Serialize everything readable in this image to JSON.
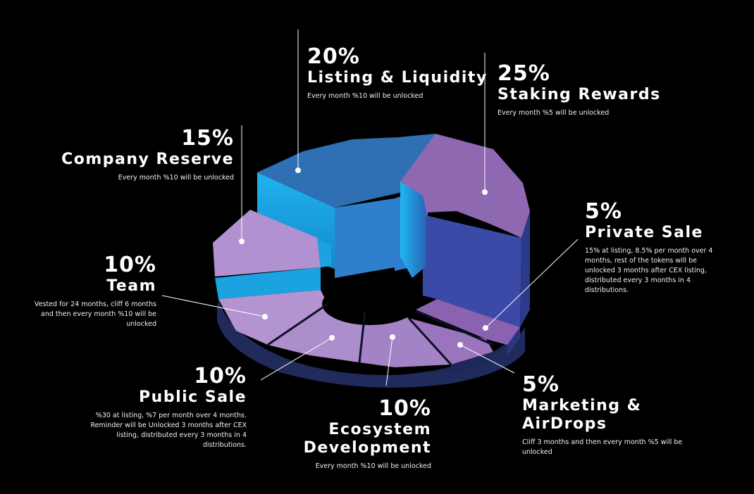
{
  "chart_data": {
    "type": "pie",
    "title": "",
    "slices": [
      {
        "label": "Listing & Liquidity",
        "percent_text": "20%",
        "value": 20,
        "description": "Every month %10 will be unlocked",
        "color": "#2f6fb4"
      },
      {
        "label": "Staking Rewards",
        "percent_text": "25%",
        "value": 25,
        "description": "Every month %5 will be unlocked",
        "color": "#8f68b2"
      },
      {
        "label": "Private Sale",
        "percent_text": "5%",
        "value": 5,
        "description": "15% at listing, 8.5% per month  over 4 months,  rest of the tokens will be unlocked 3 months after CEX listing, distributed every 3 months in 4 distributions.",
        "color": "#8a62b0"
      },
      {
        "label": "Marketing & AirDrops",
        "percent_text": "5%",
        "value": 5,
        "description": "Cliff 3 months and then every month %5 will be unlocked",
        "color": "#9a74bc"
      },
      {
        "label": "Ecosystem Development",
        "percent_text": "10%",
        "value": 10,
        "description": "Every month %10 will be unlocked",
        "color": "#a383c6"
      },
      {
        "label": "Public Sale",
        "percent_text": "10%",
        "value": 10,
        "description": "%30 at listing, %7 per month over 4 months. Reminder will be Unlocked 3 months after CEX listing, distributed every 3 months in 4 distributions.",
        "color": "#ac8ecc"
      },
      {
        "label": "Team",
        "percent_text": "10%",
        "value": 10,
        "description": "Vested for 24 months, cliff 6 months and then every month %10 will be unlocked",
        "color": "#b393d0"
      },
      {
        "label": "Company Reserve",
        "percent_text": "15%",
        "value": 15,
        "description": "Every month %10 will be unlocked",
        "color": "#b191cf"
      }
    ]
  },
  "colors": {
    "background": "#000000",
    "blue_top": "#2f6fb4",
    "cyan_side": "#1aa3e0",
    "navy_side": "#3a4aa6",
    "dark_base": "#1b2550",
    "lavender": "#b191cf"
  }
}
